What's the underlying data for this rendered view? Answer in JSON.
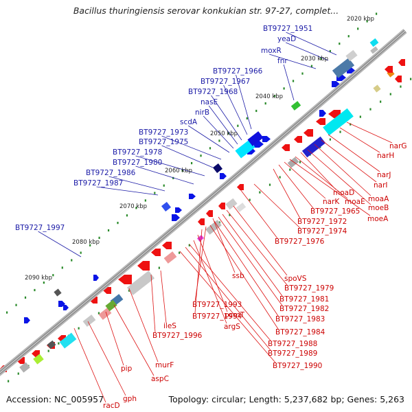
{
  "title": "Bacillus thuringiensis serovar konkukian str. 97-27, complet...",
  "footer": {
    "accession": "Accession: NC_005957",
    "stats": "Topology: circular; Length: 5,237,682 bp; Genes: 5,263"
  },
  "colors": {
    "backbone": "#8a8a8a",
    "forward_label": "#1a1aa6",
    "reverse_label": "#cc0000",
    "forward_feature": "#0a14e6",
    "reverse_feature": "#ee1111",
    "tick": "#2a8a2a"
  },
  "ticks": [
    "2020 kbp",
    "2030 kbp",
    "2040 kbp",
    "2050 kbp",
    "2060 kbp",
    "2070 kbp",
    "2080 kbp",
    "2090 kbp"
  ],
  "forward_labels": [
    "BT9727_1951",
    "yeaD",
    "moxR",
    "fnr",
    "BT9727_1966",
    "BT9727_1967",
    "BT9727_1968",
    "nasE",
    "nirB",
    "scdA",
    "BT9727_1973",
    "BT9727_1975",
    "BT9727_1978",
    "BT9727_1980",
    "BT9727_1986",
    "BT9727_1987",
    "BT9727_1997"
  ],
  "reverse_labels": [
    "narG",
    "narH",
    "narJ",
    "narI",
    "moaA",
    "moeB",
    "moaD",
    "moaE",
    "moeA",
    "narK",
    "BT9727_1965",
    "BT9727_1972",
    "BT9727_1974",
    "BT9727_1976",
    "spoVS",
    "ssb",
    "BT9727_1979",
    "BT9727_1981",
    "BT9727_1982",
    "BT9727_1983",
    "BT9727_1993",
    "BT9727_1994",
    "pcmT",
    "argS",
    "BT9727_1984",
    "ileS",
    "BT9727_1996",
    "BT9727_1988",
    "BT9727_1989",
    "BT9727_1990",
    "murF",
    "pip",
    "aspC",
    "gph",
    "racD"
  ]
}
